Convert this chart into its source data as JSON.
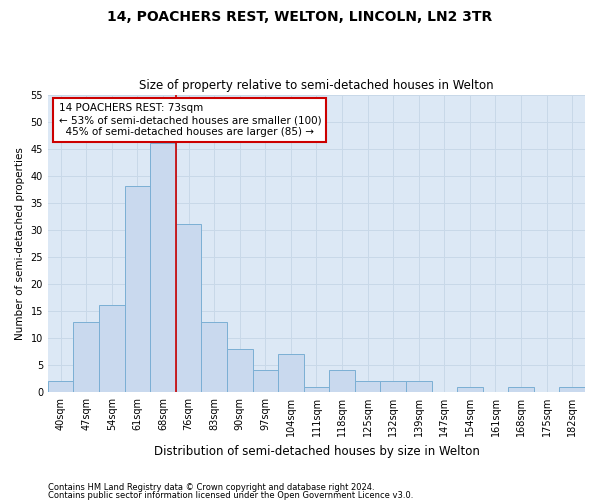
{
  "title": "14, POACHERS REST, WELTON, LINCOLN, LN2 3TR",
  "subtitle": "Size of property relative to semi-detached houses in Welton",
  "xlabel": "Distribution of semi-detached houses by size in Welton",
  "ylabel": "Number of semi-detached properties",
  "footnote1": "Contains HM Land Registry data © Crown copyright and database right 2024.",
  "footnote2": "Contains public sector information licensed under the Open Government Licence v3.0.",
  "categories": [
    "40sqm",
    "47sqm",
    "54sqm",
    "61sqm",
    "68sqm",
    "76sqm",
    "83sqm",
    "90sqm",
    "97sqm",
    "104sqm",
    "111sqm",
    "118sqm",
    "125sqm",
    "132sqm",
    "139sqm",
    "147sqm",
    "154sqm",
    "161sqm",
    "168sqm",
    "175sqm",
    "182sqm"
  ],
  "values": [
    2,
    13,
    16,
    38,
    46,
    31,
    13,
    8,
    4,
    7,
    1,
    4,
    2,
    2,
    2,
    0,
    1,
    0,
    1,
    0,
    1
  ],
  "bar_color": "#c9d9ee",
  "bar_edge_color": "#7bafd4",
  "ylim": [
    0,
    55
  ],
  "yticks": [
    0,
    5,
    10,
    15,
    20,
    25,
    30,
    35,
    40,
    45,
    50,
    55
  ],
  "property_label": "14 POACHERS REST: 73sqm",
  "pct_smaller": 53,
  "pct_smaller_count": 100,
  "pct_larger": 45,
  "pct_larger_count": 85,
  "vline_position": 4.5,
  "annotation_box_color": "#ffffff",
  "annotation_box_edge": "#cc0000",
  "grid_color": "#c8d8e8",
  "bg_color": "#dce8f5",
  "fig_bg_color": "#ffffff",
  "title_fontsize": 10,
  "subtitle_fontsize": 8.5,
  "xlabel_fontsize": 8.5,
  "ylabel_fontsize": 7.5,
  "tick_fontsize": 7,
  "annot_fontsize": 7.5,
  "footnote_fontsize": 6
}
